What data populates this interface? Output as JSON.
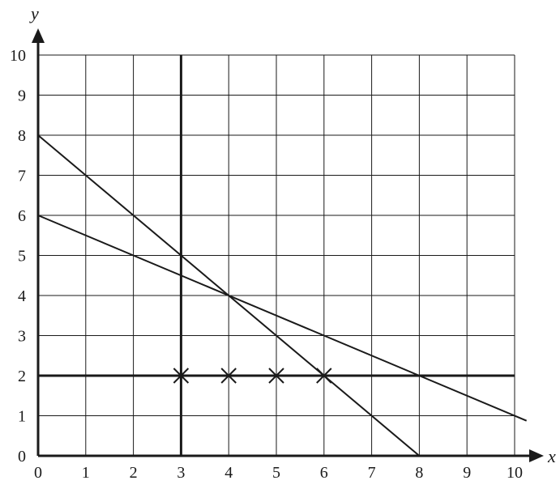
{
  "chart_data": {
    "type": "line",
    "xlabel": "x",
    "ylabel": "y",
    "xlim": [
      0,
      10
    ],
    "ylim": [
      0,
      10
    ],
    "grid": true,
    "x_ticks": [
      "0",
      "1",
      "2",
      "3",
      "4",
      "5",
      "6",
      "7",
      "8",
      "9",
      "10"
    ],
    "y_ticks": [
      "0",
      "1",
      "2",
      "3",
      "4",
      "5",
      "6",
      "7",
      "8",
      "9",
      "10"
    ],
    "series": [
      {
        "x": [
          3,
          3
        ],
        "y": [
          0,
          10
        ],
        "style": "thick"
      },
      {
        "x": [
          0,
          10
        ],
        "y": [
          2,
          2
        ],
        "style": "thick"
      },
      {
        "x": [
          0,
          8
        ],
        "y": [
          8,
          0
        ],
        "style": "thin"
      },
      {
        "x": [
          0,
          10.25
        ],
        "y": [
          6,
          0.875
        ],
        "style": "thin"
      }
    ],
    "points": [
      {
        "x": 3,
        "y": 2
      },
      {
        "x": 4,
        "y": 2
      },
      {
        "x": 5,
        "y": 2
      },
      {
        "x": 6,
        "y": 2
      }
    ],
    "colors": {
      "ink": "#1a1a1a",
      "grid": "#1a1a1a"
    }
  }
}
